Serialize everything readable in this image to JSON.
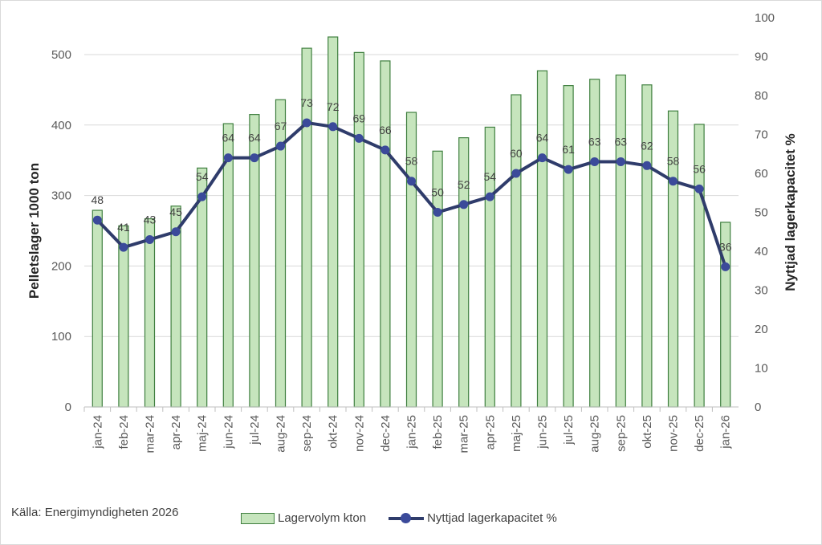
{
  "chart_data": {
    "type": "bar+line",
    "categories": [
      "jan-24",
      "feb-24",
      "mar-24",
      "apr-24",
      "maj-24",
      "jun-24",
      "jul-24",
      "aug-24",
      "sep-24",
      "okt-24",
      "nov-24",
      "dec-24",
      "jan-25",
      "feb-25",
      "mar-25",
      "apr-25",
      "maj-25",
      "jun-25",
      "jul-25",
      "aug-25",
      "sep-25",
      "okt-25",
      "nov-25",
      "dec-25",
      "jan-26"
    ],
    "series": [
      {
        "name": "Lagervolym kton",
        "type": "bar",
        "axis": "left",
        "color": "#c6e5bd",
        "edge": "#3f7f3f",
        "values": [
          279,
          257,
          267,
          285,
          339,
          402,
          415,
          436,
          509,
          525,
          503,
          491,
          418,
          363,
          382,
          397,
          443,
          477,
          456,
          465,
          471,
          457,
          420,
          401,
          262
        ]
      },
      {
        "name": "Nyttjad lagerkapacitet %",
        "type": "line",
        "axis": "right",
        "color": "#2f3c6b",
        "marker": "#3b4a9a",
        "values": [
          48,
          41,
          43,
          45,
          54,
          64,
          64,
          67,
          73,
          72,
          69,
          66,
          58,
          50,
          52,
          54,
          60,
          64,
          61,
          63,
          63,
          62,
          58,
          56,
          36
        ]
      }
    ],
    "ylabel": "Pelletslager 1000 ton",
    "ylabel_right": "Nyttjad lagerkapacitet %",
    "ylim": [
      0,
      500
    ],
    "yticks": [
      0,
      100,
      200,
      300,
      400,
      500
    ],
    "ylim_right": [
      0,
      100
    ],
    "yticks_right": [
      0,
      10,
      20,
      30,
      40,
      50,
      60,
      70,
      80,
      90,
      100
    ],
    "grid": true,
    "legend": "bottom"
  },
  "source": "Källa: Energimyndigheten 2026"
}
